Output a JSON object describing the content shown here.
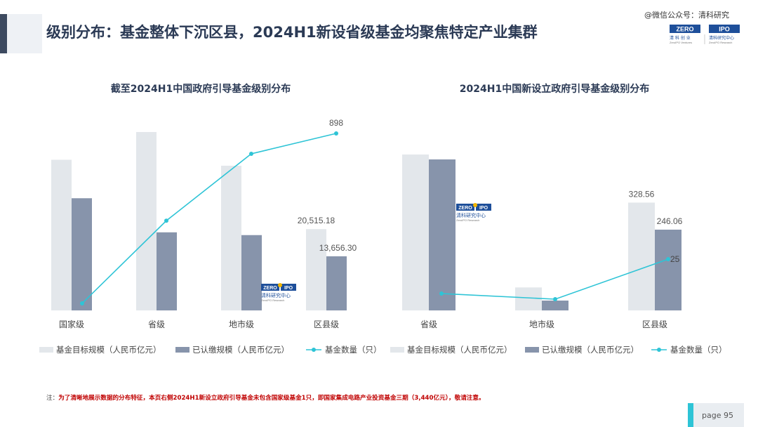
{
  "header": {
    "title": "级别分布：基金整体下沉区县，2024H1新设省级基金均聚焦特定产业集群",
    "wechat": "@微信公众号：清科研究"
  },
  "logo": {
    "line1a": "ZERO",
    "line1b": "IPO",
    "line2": "清科研究中心",
    "line3": "ZeroIPO Research"
  },
  "colors": {
    "target": "#e3e7eb",
    "paid": "#8794ab",
    "count": "#2ec4d6",
    "title": "#2b3a55"
  },
  "chart_data": [
    {
      "type": "bar",
      "title": "截至2024H1中国政府引导基金级别分布",
      "categories": [
        "国家级",
        "省级",
        "地市级",
        "区县级"
      ],
      "series": [
        {
          "name": "基金目标规模（人民币亿元）",
          "values": [
            38000,
            45000,
            36500,
            20515.18
          ]
        },
        {
          "name": "已认缴规模（人民币亿元）",
          "values": [
            28300,
            19700,
            19000,
            13656.3
          ]
        },
        {
          "name": "基金数量（只）",
          "values": [
            80,
            478,
            800,
            898
          ]
        }
      ],
      "labels": {
        "target_last": "20,515.18",
        "paid_last": "13,656.30",
        "count_last": "898"
      },
      "legend": "bottom"
    },
    {
      "type": "bar",
      "title": "2024H1中国新设立政府引导基金级别分布",
      "categories": [
        "省级",
        "地市级",
        "区县级"
      ],
      "series": [
        {
          "name": "基金目标规模（人民币亿元）",
          "values": [
            475,
            70,
            328.56
          ]
        },
        {
          "name": "已认缴规模（人民币亿元）",
          "values": [
            460,
            30,
            246.06
          ]
        },
        {
          "name": "基金数量（只）",
          "values": [
            2,
            1,
            25
          ]
        }
      ],
      "labels": {
        "target_last": "328.56",
        "paid_last": "246.06",
        "count_last": "25"
      },
      "legend": "bottom"
    }
  ],
  "note": {
    "prefix": "注：",
    "text": "为了清晰地展示数据的分布特征，本页右侧2024H1新设立政府引导基金未包含国家级基金1只，即国家集成电路产业投资基金三期（3,440亿元），敬请注意。"
  },
  "page": {
    "label": "page  95"
  }
}
